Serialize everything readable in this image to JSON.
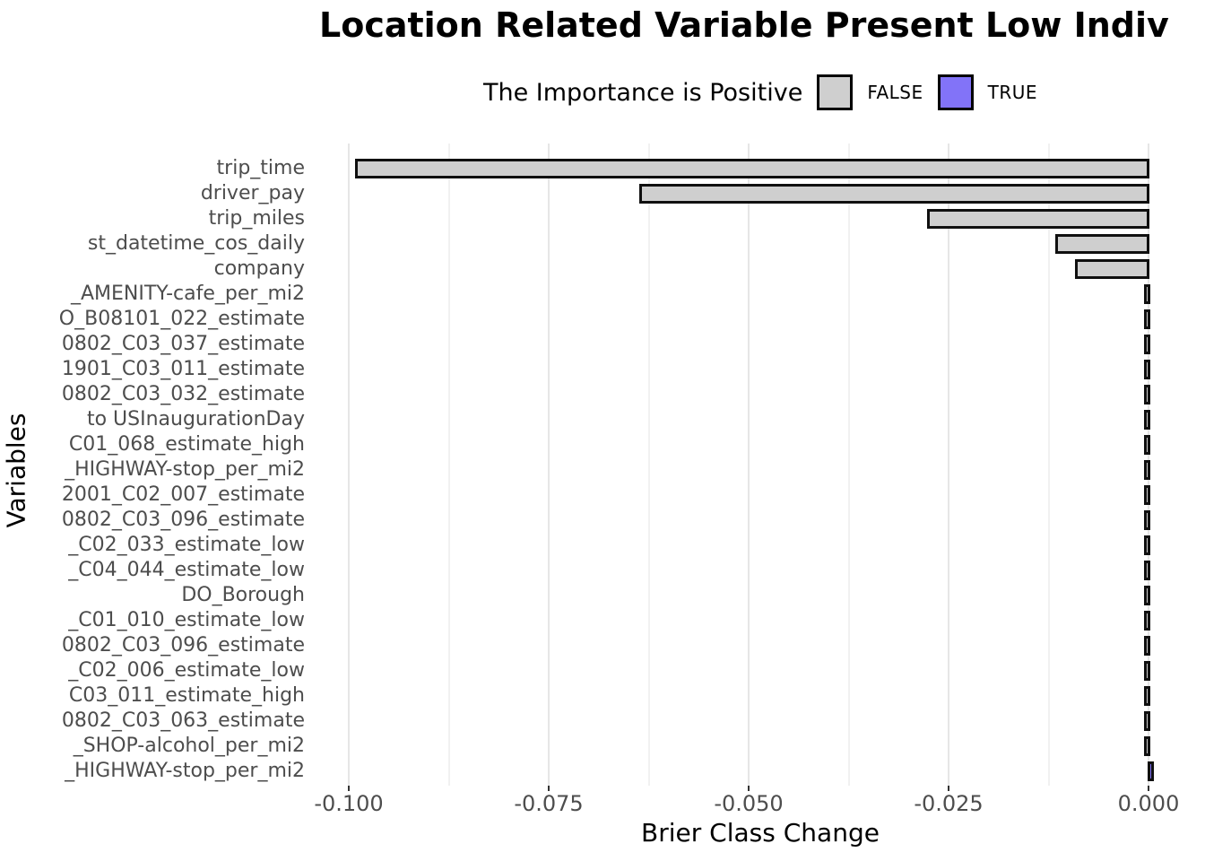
{
  "chart_data": {
    "type": "bar",
    "orientation": "horizontal",
    "title": "Location Related Variable Present Low Indiv",
    "title_truncated": true,
    "xlabel": "Brier Class Change",
    "ylabel": "Variables",
    "legend": {
      "title": "The Importance is Positive",
      "position": "top",
      "entries": [
        {
          "label": "FALSE",
          "color": "#cfcfcf"
        },
        {
          "label": "TRUE",
          "color": "#8273f8"
        }
      ]
    },
    "colors": {
      "bar_false_fill": "#cfcfcf",
      "bar_true_fill": "#8273f8",
      "bar_outline": "#101010",
      "grid_major": "#e6e6e6",
      "grid_minor": "#f1f1f1",
      "axis_text": "#4d4d4d"
    },
    "x_axis": {
      "ticks": [
        -0.1,
        -0.075,
        -0.05,
        -0.025,
        0.0
      ],
      "tick_labels": [
        "-0.100",
        "-0.075",
        "-0.050",
        "-0.025",
        "0.000"
      ],
      "minor_ticks": [
        -0.0875,
        -0.0625,
        -0.0375,
        -0.0125
      ],
      "range": [
        -0.1041,
        0.0071
      ],
      "grid": true
    },
    "categories": [
      "trip_time",
      "driver_pay",
      "trip_miles",
      "st_datetime_cos_daily",
      "company",
      "_AMENITY-cafe_per_mi2",
      "O_B08101_022_estimate",
      "0802_C03_037_estimate",
      "1901_C03_011_estimate",
      "0802_C03_032_estimate",
      "to USInaugurationDay",
      "C01_068_estimate_high",
      "_HIGHWAY-stop_per_mi2",
      "2001_C02_007_estimate",
      "0802_C03_096_estimate",
      "_C02_033_estimate_low",
      "_C04_044_estimate_low",
      "DO_Borough",
      "_C01_010_estimate_low",
      "0802_C03_096_estimate",
      "_C02_006_estimate_low",
      "C03_011_estimate_high",
      "0802_C03_063_estimate",
      "_SHOP-alcohol_per_mi2",
      "_HIGHWAY-stop_per_mi2"
    ],
    "values": [
      -0.099,
      -0.0635,
      -0.0275,
      -0.0115,
      -0.009,
      -0.0002,
      -0.0002,
      -0.0002,
      -0.0002,
      -0.0002,
      -0.0002,
      -0.0002,
      -0.0002,
      -0.0002,
      -0.0002,
      -0.0002,
      -0.0002,
      -0.0002,
      -0.0002,
      -0.0002,
      -0.0002,
      -0.0002,
      -0.0002,
      -0.0002,
      0.0004
    ],
    "positive": [
      false,
      false,
      false,
      false,
      false,
      false,
      false,
      false,
      false,
      false,
      false,
      false,
      false,
      false,
      false,
      false,
      false,
      false,
      false,
      false,
      false,
      false,
      false,
      false,
      true
    ]
  }
}
